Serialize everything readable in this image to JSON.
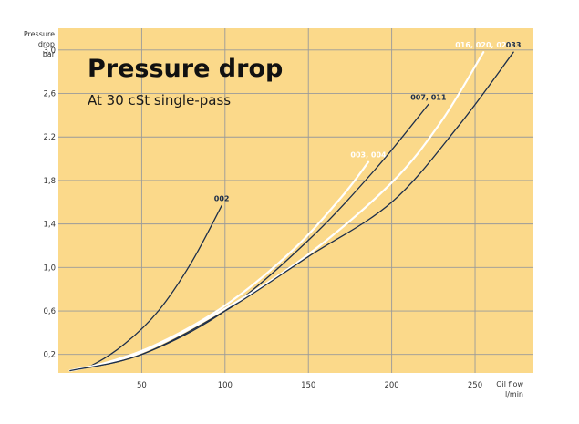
{
  "chart_data": {
    "type": "line",
    "title": "Pressure drop",
    "subtitle": "At 30 cSt single-pass",
    "ylabel": [
      "Pressure",
      "drop",
      "bar"
    ],
    "xlabel": [
      "Oil flow",
      "l/min"
    ],
    "xlim": [
      0,
      285
    ],
    "ylim": [
      0.03,
      3.2
    ],
    "xticks": [
      50,
      100,
      150,
      200,
      250
    ],
    "yticks": [
      0.2,
      0.6,
      1.0,
      1.4,
      1.8,
      2.2,
      2.6,
      3.0
    ],
    "ytick_labels": [
      "0,2",
      "0,6",
      "1,0",
      "1,4",
      "1,8",
      "2,2",
      "2,6",
      "3,0"
    ],
    "grid": true,
    "background_color": "#fbd98a",
    "grid_color": "#9a9a9a",
    "series": [
      {
        "name": "002",
        "color": "#1c2e4a",
        "x": [
          7,
          20,
          40,
          60,
          80,
          98
        ],
        "y": [
          0.05,
          0.1,
          0.3,
          0.6,
          1.05,
          1.57
        ]
      },
      {
        "name": "003, 004",
        "color": "#ffffff",
        "x": [
          7,
          30,
          60,
          100,
          140,
          170,
          186
        ],
        "y": [
          0.05,
          0.13,
          0.3,
          0.65,
          1.15,
          1.65,
          1.97
        ]
      },
      {
        "name": "007, 011",
        "color": "#1c2e4a",
        "x": [
          7,
          50,
          100,
          150,
          190,
          222
        ],
        "y": [
          0.05,
          0.2,
          0.6,
          1.25,
          1.9,
          2.5
        ]
      },
      {
        "name": "016, 020, 023",
        "color": "#ffffff",
        "x": [
          7,
          50,
          100,
          150,
          200,
          230,
          255
        ],
        "y": [
          0.05,
          0.22,
          0.62,
          1.12,
          1.78,
          2.35,
          2.98
        ]
      },
      {
        "name": "033",
        "color": "#1c2e4a",
        "x": [
          7,
          50,
          100,
          150,
          200,
          240,
          273
        ],
        "y": [
          0.05,
          0.2,
          0.6,
          1.1,
          1.6,
          2.3,
          2.98
        ]
      }
    ]
  }
}
